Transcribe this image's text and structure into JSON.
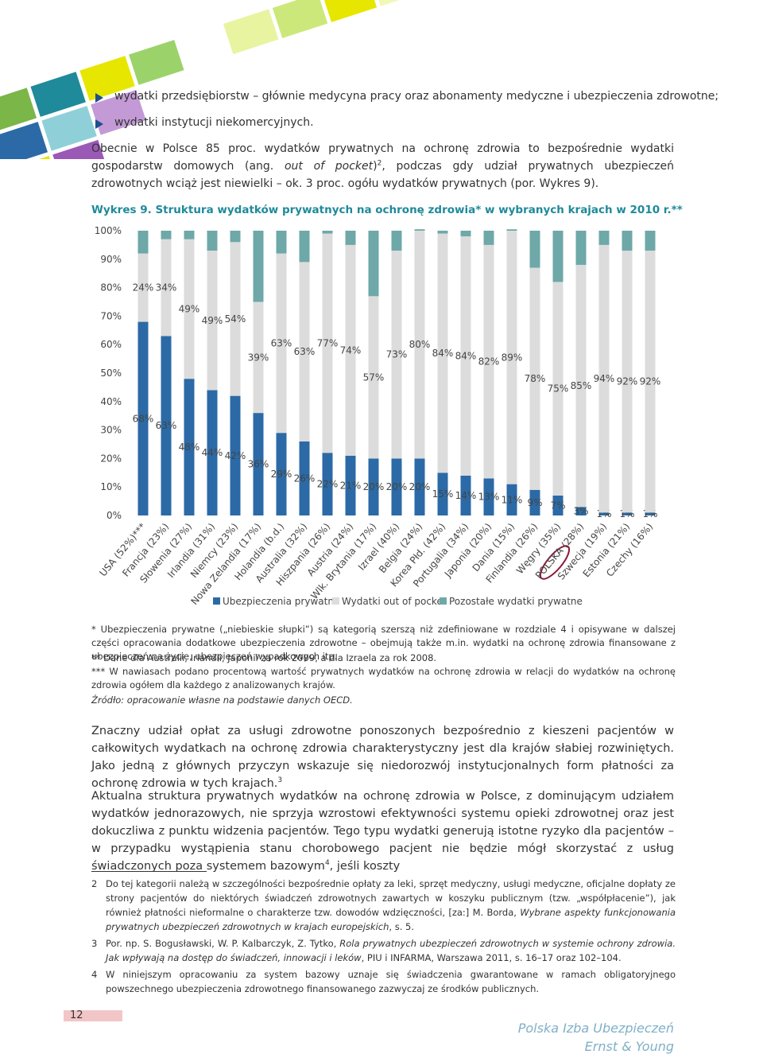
{
  "bullets": [
    "wydatki przedsiębiorstw – głównie medycyna pracy oraz abonamenty medyczne i ubezpieczenia zdrowotne;",
    "wydatki instytucji niekomercyjnych."
  ],
  "paragraphs": [
    [
      "Obecnie w Polsce 85 proc. wydatków prywatnych na ochronę zdrowia to bezpośrednie wydatki gospodarstw domowych (ang. ",
      "out of pocket",
      ")",
      "2",
      ", podczas gdy udział prywatnych ubezpieczeń zdrowotnych wciąż jest niewielki – ok. 3 proc. ogółu wydatków prywatnych (por. Wykres 9)."
    ],
    [
      "Znaczny udział opłat za usługi zdrowotne ponoszonych bezpośrednio z kieszeni pacjentów w całkowitych wydatkach na ochronę zdrowia charakterystyczny jest dla krajów słabiej rozwiniętych. Jako jedną z głównych przyczyn wskazuje się niedorozwój instytucjonalnych form płatności za ochronę zdrowia w tych krajach.",
      "3"
    ],
    [
      "Aktualna struktura prywatnych wydatków na ochronę zdrowia w Polsce, z dominującym udziałem wydatków jednorazowych, nie sprzyja wzrostowi efektywności systemu opieki zdrowotnej oraz jest dokuczliwa z punktu widzenia pacjentów. Tego typu wydatki generują istotne ryzyko dla pacjentów – w przypadku wystąpienia stanu chorobowego pacjent nie będzie mógł skorzystać z usług świadczonych poza systemem bazowym",
      "4",
      ", jeśli koszty"
    ]
  ],
  "chart_data": {
    "type": "stacked_bar",
    "title": "Wykres 9. Struktura wydatków prywatnych na ochronę zdrowia* w wybranych krajach w 2010 r.**",
    "categories": [
      "USA (52%)***",
      "Francja (23%)",
      "Słowenia (27%)",
      "Irlandia (31%)",
      "Niemcy (23%)",
      "Nowa Zelandia (17%)",
      "Holandia (b.d.)",
      "Australia (32%)",
      "Hiszpania (26%)",
      "Austria (24%)",
      "Wlk. Brytania (17%)",
      "Izrael (40%)",
      "Belgia (24%)",
      "Korea Płd. (42%)",
      "Portugalia (34%)",
      "Japonia (20%)",
      "Dania (15%)",
      "Finlandia (26%)",
      "Węgry (35%)",
      "POLSKA (28%)",
      "Szwecja (19%)",
      "Estonia (21%)",
      "Czechy (16%)"
    ],
    "series": [
      {
        "name": "Ubezpieczenia prywatne",
        "color": "#2b6aa6",
        "values": [
          68,
          63,
          48,
          44,
          42,
          36,
          29,
          26,
          22,
          21,
          20,
          20,
          20,
          15,
          14,
          13,
          11,
          9,
          7,
          3,
          1,
          1,
          1
        ],
        "value_labels": [
          "68%",
          "63%",
          "48%",
          "44%",
          "42%",
          "36%",
          "29%",
          "26%",
          "22%",
          "21%",
          "20%",
          "20%",
          "20%",
          "15%",
          "14%",
          "13%",
          "11%",
          "9%",
          "7%",
          "3%",
          "1%",
          "1%",
          "1%"
        ]
      },
      {
        "name": "Wydatki out of pocket",
        "color": "#dcdcdc",
        "values": [
          24,
          34,
          49,
          49,
          54,
          39,
          63,
          63,
          77,
          74,
          57,
          73,
          80,
          84,
          84,
          82,
          89,
          78,
          75,
          85,
          94,
          92,
          92
        ],
        "value_labels": [
          "24%",
          "34%",
          "49%",
          "49%",
          "54%",
          "39%",
          "63%",
          "63%",
          "77%",
          "74%",
          "57%",
          "73%",
          "80%",
          "84%",
          "84%",
          "82%",
          "89%",
          "78%",
          "75%",
          "85%",
          "94%",
          "92%",
          "92%"
        ]
      },
      {
        "name": "Pozostałe wydatki prywatne",
        "color": "#6ea8a8",
        "values": [
          8,
          3,
          3,
          7,
          4,
          25,
          8,
          11,
          1,
          5,
          23,
          7,
          0.5,
          1,
          2,
          5,
          0.5,
          13,
          18,
          12,
          5,
          7,
          7
        ]
      }
    ],
    "ylim": [
      0,
      100
    ],
    "yticks": [
      {
        "value": 0,
        "label": "0%"
      },
      {
        "value": 10,
        "label": "10%"
      },
      {
        "value": 20,
        "label": "20%"
      },
      {
        "value": 30,
        "label": "30%"
      },
      {
        "value": 40,
        "label": "40%"
      },
      {
        "value": 50,
        "label": "50%"
      },
      {
        "value": 60,
        "label": "60%"
      },
      {
        "value": 70,
        "label": "70%"
      },
      {
        "value": 80,
        "label": "80%"
      },
      {
        "value": 90,
        "label": "90%"
      },
      {
        "value": 100,
        "label": "100%"
      }
    ],
    "grid": false,
    "legend": "bottom"
  },
  "notes": [
    "* Ubezpieczenia prywatne („niebieskie słupki”) są kategorią szerszą niż zdefiniowane w rozdziale 4 i opisywane w dalszej części opracowania dodatkowe ubezpieczenia zdrowotne – obejmują także m.in. wydatki na ochronę zdrowia finansowane z ubezpieczeń na życie, ubezpieczeń wypadkowych itp.",
    "** Dane dla Australii, Irlandii, Japonii za rok 2009, a dla Izraela za rok 2008.",
    "*** W nawiasach podano procentową wartość prywatnych wydatków na ochronę zdrowia w relacji do wydatków na ochronę zdrowia ogółem dla każdego z analizowanych krajów.",
    "Źródło: opracowanie własne na podstawie danych OECD."
  ],
  "footnotes": [
    {
      "number": "2",
      "text": [
        "Do tej kategorii należą w szczególności bezpośrednie opłaty za leki, sprzęt medyczny, usługi medyczne, oficjalne dopłaty ze strony pacjentów do niektórych świadczeń zdrowotnych zawartych w koszyku publicznym (tzw. „współpłacenie”), jak również płatności nieformalne o charakterze tzw. dowodów wdzięczności, [za:] M. Borda, ",
        "Wybrane aspekty funkcjonowania prywatnych ubezpieczeń zdrowotnych w krajach europejskich",
        ", s. 5."
      ]
    },
    {
      "number": "3",
      "text": [
        "Por. np. S. Bogusławski, W. P. Kalbarczyk, Z. Tytko, ",
        "Rola prywatnych ubezpieczeń zdrowotnych w systemie ochrony zdrowia. Jak wpływają na dostęp do świadczeń, innowacji i leków",
        ", PIU i INFARMA, Warszawa 2011, s. 16–17 oraz 102–104."
      ]
    },
    {
      "number": "4",
      "text": [
        "W niniejszym opracowaniu za system bazowy uznaje się świadczenia gwarantowane w ramach obligatoryjnego powszechnego ubezpieczenia zdrowotnego finansowanego zazwyczaj ze środków publicznych."
      ]
    }
  ],
  "page_number": "12",
  "footer": [
    "Polska Izba Ubezpieczeń",
    "Ernst & Young"
  ]
}
